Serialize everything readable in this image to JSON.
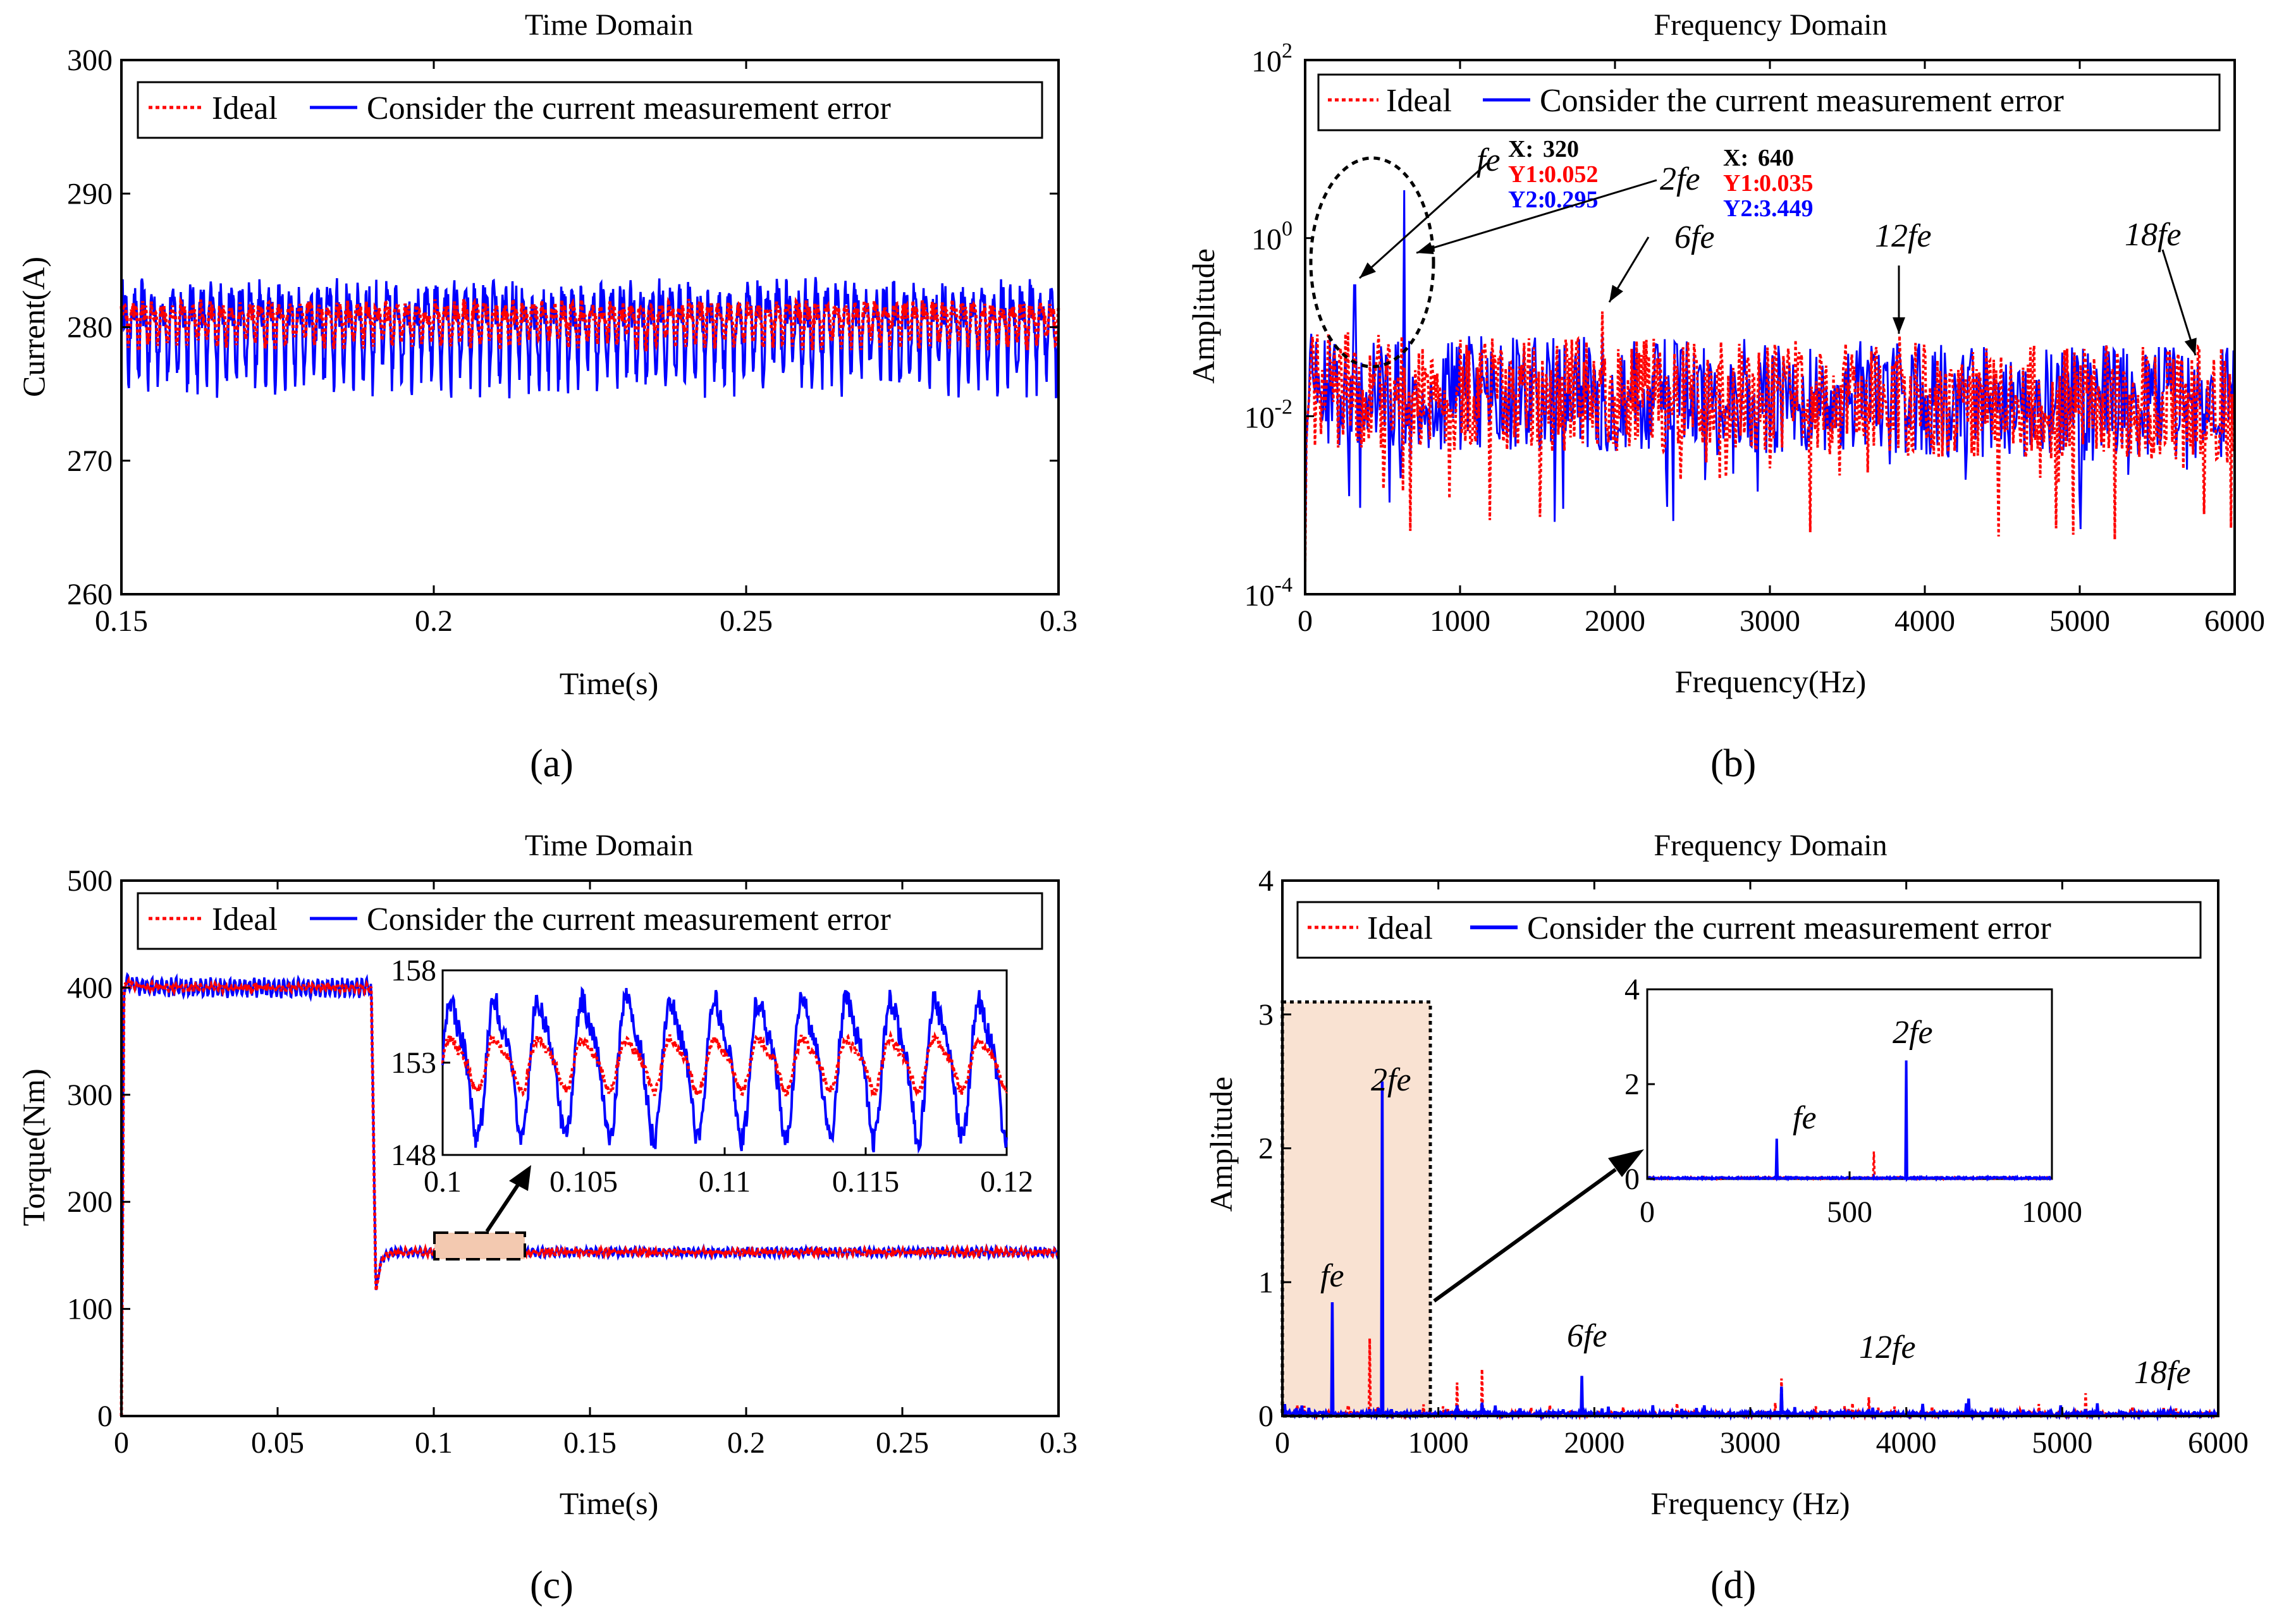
{
  "colors": {
    "ideal": "#ff0000",
    "measured": "#0000ff",
    "inset_highlight": "#f9e2d2"
  },
  "legend": {
    "ideal": "Ideal",
    "measured": "Consider the current measurement error"
  },
  "chart_data": [
    {
      "id": "a",
      "type": "line",
      "panel_label": "(a)",
      "title": "Time Domain",
      "xlabel": "Time(s)",
      "ylabel": "Current(A)",
      "xlim": [
        0.15,
        0.3
      ],
      "ylim": [
        260,
        300
      ],
      "xticks": [
        "0.15",
        "0.2",
        "0.25",
        "0.3"
      ],
      "yticks": [
        "260",
        "270",
        "280",
        "290",
        "300"
      ],
      "legend_position": "top",
      "series": [
        {
          "name": "Ideal",
          "mean": 280.5,
          "ripple_amplitude": 1.5,
          "style": "dotted"
        },
        {
          "name": "Consider the current measurement error",
          "mean": 280,
          "ripple_amplitude": 3.5,
          "min": 273.5,
          "max": 285.5,
          "style": "solid"
        }
      ]
    },
    {
      "id": "b",
      "type": "line",
      "panel_label": "(b)",
      "title": "Frequency Domain",
      "xlabel": "Frequency(Hz)",
      "ylabel": "Amplitude",
      "scale": "log",
      "xlim": [
        0,
        6000
      ],
      "ylim": [
        0.0001,
        100
      ],
      "xticks": [
        "0",
        "1000",
        "2000",
        "3000",
        "4000",
        "5000",
        "6000"
      ],
      "yticks": [
        "10-4",
        "10-2",
        "100",
        "102"
      ],
      "legend_position": "top",
      "series": [
        {
          "name": "Ideal",
          "noise_floor": 0.02,
          "style": "dotted"
        },
        {
          "name": "Consider the current measurement error",
          "noise_floor": 0.02,
          "style": "solid"
        }
      ],
      "peaks": [
        {
          "x": 320,
          "ideal": 0.052,
          "measured": 0.295
        },
        {
          "x": 640,
          "ideal": 0.035,
          "measured": 3.449
        },
        {
          "x": 1920,
          "ideal": 0.15,
          "measured": 0.08
        },
        {
          "x": 3840,
          "ideal": 0.08,
          "measured": 0.05
        },
        {
          "x": 5760,
          "ideal": 0.06,
          "measured": 0.04
        }
      ],
      "datatips": [
        {
          "x_label": "X:",
          "x": "320",
          "y1_label": "Y1:",
          "y1": "0.052",
          "y2_label": "Y2:",
          "y2": "0.295"
        },
        {
          "x_label": "X:",
          "x": "640",
          "y1_label": "Y1:",
          "y1": "0.035",
          "y2_label": "Y2:",
          "y2": "3.449"
        }
      ],
      "annotations": [
        "fe",
        "2fe",
        "6fe",
        "12fe",
        "18fe"
      ]
    },
    {
      "id": "c",
      "type": "line",
      "panel_label": "(c)",
      "title": "Time Domain",
      "xlabel": "Time(s)",
      "ylabel": "Torque(Nm)",
      "xlim": [
        0,
        0.3
      ],
      "ylim": [
        0,
        500
      ],
      "xticks": [
        "0",
        "0.05",
        "0.1",
        "0.15",
        "0.2",
        "0.25",
        "0.3"
      ],
      "yticks": [
        "0",
        "100",
        "200",
        "300",
        "400",
        "500"
      ],
      "legend_position": "top",
      "series": [
        {
          "name": "Ideal",
          "segments": [
            {
              "t": [
                0,
                0.08
              ],
              "value": 400
            },
            {
              "t": [
                0.08,
                0.3
              ],
              "value": 153
            }
          ],
          "style": "dotted"
        },
        {
          "name": "Consider the current measurement error",
          "segments": [
            {
              "t": [
                0,
                0.08
              ],
              "value": 400
            },
            {
              "t": [
                0.08,
                0.3
              ],
              "value": 153
            }
          ],
          "style": "solid"
        }
      ],
      "inset": {
        "xlim": [
          0.1,
          0.12
        ],
        "ylim": [
          148,
          158
        ],
        "xticks": [
          "0.1",
          "0.105",
          "0.11",
          "0.115",
          "0.12"
        ],
        "yticks": [
          "148",
          "153",
          "158"
        ],
        "ideal_amplitude": 1.5,
        "measured_amplitude": 4.0,
        "cycles": 12.8
      }
    },
    {
      "id": "d",
      "type": "line",
      "panel_label": "(d)",
      "title": "Frequency Domain",
      "xlabel": "Frequency (Hz)",
      "ylabel": "Amplitude",
      "xlim": [
        0,
        6000
      ],
      "ylim": [
        0,
        4
      ],
      "xticks": [
        "0",
        "1000",
        "2000",
        "3000",
        "4000",
        "5000",
        "6000"
      ],
      "yticks": [
        "0",
        "1",
        "2",
        "3",
        "4"
      ],
      "legend_position": "top",
      "series": [
        {
          "name": "Ideal",
          "style": "dotted"
        },
        {
          "name": "Consider the current measurement error",
          "style": "solid"
        }
      ],
      "peaks": [
        {
          "x": 320,
          "ideal": 0.12,
          "measured": 0.85
        },
        {
          "x": 560,
          "ideal": 0.58,
          "measured": 0.05
        },
        {
          "x": 640,
          "ideal": 0.06,
          "measured": 2.5
        },
        {
          "x": 1120,
          "ideal": 0.25,
          "measured": 0.08
        },
        {
          "x": 1280,
          "ideal": 0.35,
          "measured": 0.1
        },
        {
          "x": 1920,
          "ideal": 0.15,
          "measured": 0.3
        },
        {
          "x": 3200,
          "ideal": 0.28,
          "measured": 0.22
        },
        {
          "x": 3760,
          "ideal": 0.14,
          "measured": 0.05
        },
        {
          "x": 4400,
          "ideal": 0.05,
          "measured": 0.13
        },
        {
          "x": 5150,
          "ideal": 0.17,
          "measured": 0.05
        },
        {
          "x": 5650,
          "ideal": 0.06,
          "measured": 0.05
        }
      ],
      "annotations": [
        "fe",
        "2fe",
        "6fe",
        "12fe",
        "18fe"
      ],
      "inset": {
        "xlim": [
          0,
          1000
        ],
        "ylim": [
          0,
          4
        ],
        "xticks": [
          "0",
          "500",
          "1000"
        ],
        "yticks": [
          "0",
          "2",
          "4"
        ],
        "annotations": [
          "fe",
          "2fe"
        ]
      }
    }
  ]
}
